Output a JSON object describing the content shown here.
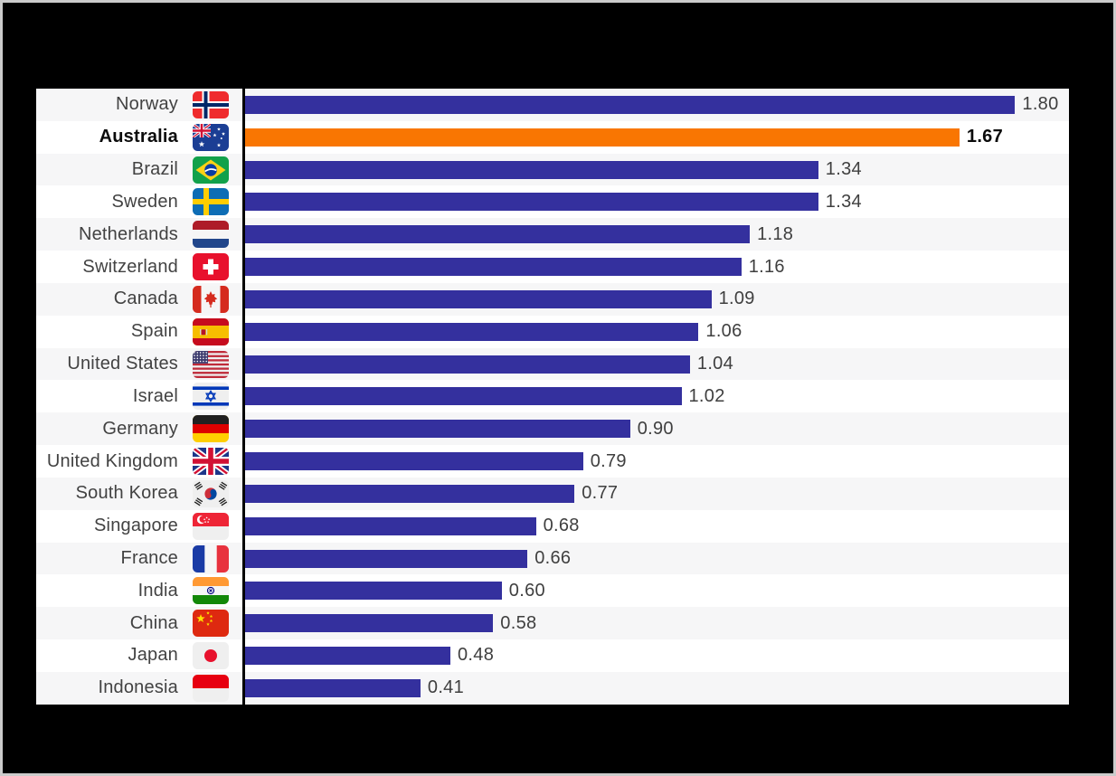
{
  "frame": {
    "background": "#000000",
    "border_color": "#CBCBCB"
  },
  "chart_data": {
    "type": "bar",
    "orientation": "horizontal",
    "title": "",
    "categories": [
      "Norway",
      "Australia",
      "Brazil",
      "Sweden",
      "Netherlands",
      "Switzerland",
      "Canada",
      "Spain",
      "United States",
      "Israel",
      "Germany",
      "United Kingdom",
      "South Korea",
      "Singapore",
      "France",
      "India",
      "China",
      "Japan",
      "Indonesia"
    ],
    "values": [
      1.8,
      1.67,
      1.34,
      1.34,
      1.18,
      1.16,
      1.09,
      1.06,
      1.04,
      1.02,
      0.9,
      0.79,
      0.77,
      0.68,
      0.66,
      0.6,
      0.58,
      0.48,
      0.41
    ],
    "value_labels": [
      "1.80",
      "1.67",
      "1.34",
      "1.34",
      "1.18",
      "1.16",
      "1.09",
      "1.06",
      "1.04",
      "1.02",
      "0.90",
      "0.79",
      "0.77",
      "0.68",
      "0.66",
      "0.60",
      "0.58",
      "0.48",
      "0.41"
    ],
    "flag_codes": [
      "norway",
      "australia",
      "brazil",
      "sweden",
      "netherlands",
      "switzerland",
      "canada",
      "spain",
      "united-states",
      "israel",
      "germany",
      "united-kingdom",
      "south-korea",
      "singapore",
      "france",
      "india",
      "china",
      "japan",
      "indonesia"
    ],
    "highlight_category": "Australia",
    "highlight_index": 1,
    "xlim": [
      0,
      1.93
    ],
    "grid": false,
    "legend": "none",
    "colors": {
      "bar": "#34309E",
      "highlight": "#F97602",
      "axis_line": "#000000",
      "row_stripe_odd": "#F6F6F7",
      "row_stripe_even": "#FFFFFF",
      "label_text": "#424242",
      "value_text": "#3F3F3F",
      "highlight_text": "#0B0B0B"
    }
  }
}
